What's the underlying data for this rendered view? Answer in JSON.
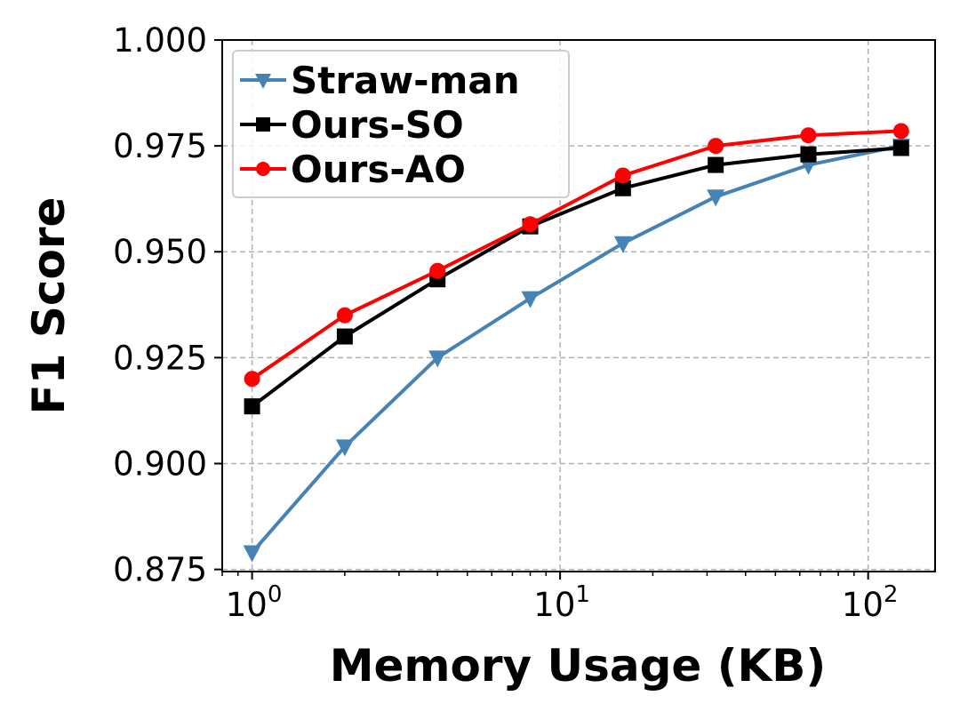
{
  "chart_data": {
    "type": "line",
    "title": "",
    "xlabel": "Memory Usage (KB)",
    "ylabel": "F1 Score",
    "xscale": "log",
    "xlim": [
      0.8,
      165
    ],
    "ylim": [
      0.8745,
      1.0
    ],
    "grid": true,
    "legend_position": "top-left",
    "x": [
      1,
      2,
      4,
      8,
      16,
      32,
      64,
      128
    ],
    "x_ticks": [
      {
        "value": 1,
        "base": "10",
        "exp": "0"
      },
      {
        "value": 10,
        "base": "10",
        "exp": "1"
      },
      {
        "value": 100,
        "base": "10",
        "exp": "2"
      }
    ],
    "y_ticks": [
      {
        "value": 0.875,
        "label": "0.875"
      },
      {
        "value": 0.9,
        "label": "0.900"
      },
      {
        "value": 0.925,
        "label": "0.925"
      },
      {
        "value": 0.95,
        "label": "0.950"
      },
      {
        "value": 0.975,
        "label": "0.975"
      },
      {
        "value": 1.0,
        "label": "1.000"
      }
    ],
    "series": [
      {
        "name": "Straw-man",
        "color": "#4682b4",
        "marker": "triangle-down",
        "values": [
          0.879,
          0.904,
          0.925,
          0.939,
          0.952,
          0.963,
          0.9705,
          0.975
        ]
      },
      {
        "name": "Ours-SO",
        "color": "#000000",
        "marker": "square",
        "values": [
          0.9135,
          0.93,
          0.9435,
          0.956,
          0.965,
          0.9705,
          0.973,
          0.9745
        ]
      },
      {
        "name": "Ours-AO",
        "color": "#ff0000",
        "marker": "circle",
        "values": [
          0.92,
          0.935,
          0.9455,
          0.9565,
          0.968,
          0.975,
          0.9775,
          0.9785
        ]
      }
    ]
  }
}
